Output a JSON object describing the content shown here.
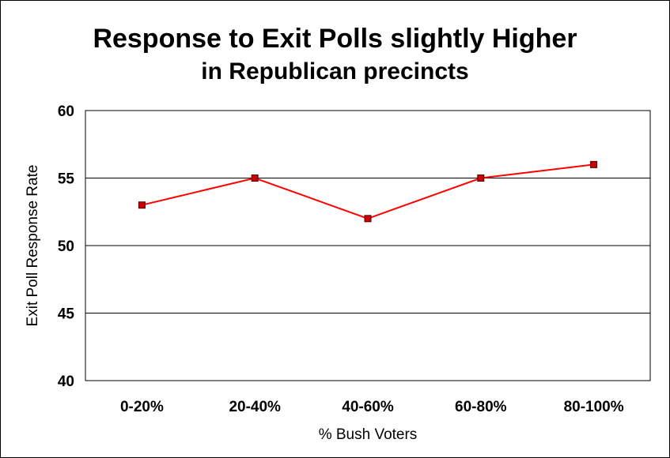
{
  "chart_data": {
    "type": "line",
    "title": "Response to Exit Polls slightly Higher",
    "subtitle": "in Republican precincts",
    "xlabel": "% Bush Voters",
    "ylabel": "Exit Poll Response Rate",
    "categories": [
      "0-20%",
      "20-40%",
      "40-60%",
      "60-80%",
      "80-100%"
    ],
    "series": [
      {
        "values": [
          53,
          55,
          52,
          55,
          56
        ]
      }
    ],
    "ylim": [
      40,
      60
    ],
    "yticks": [
      40,
      45,
      50,
      55,
      60
    ],
    "grid": true,
    "line_color": "#ff0000",
    "marker_color": "#cc0000"
  }
}
